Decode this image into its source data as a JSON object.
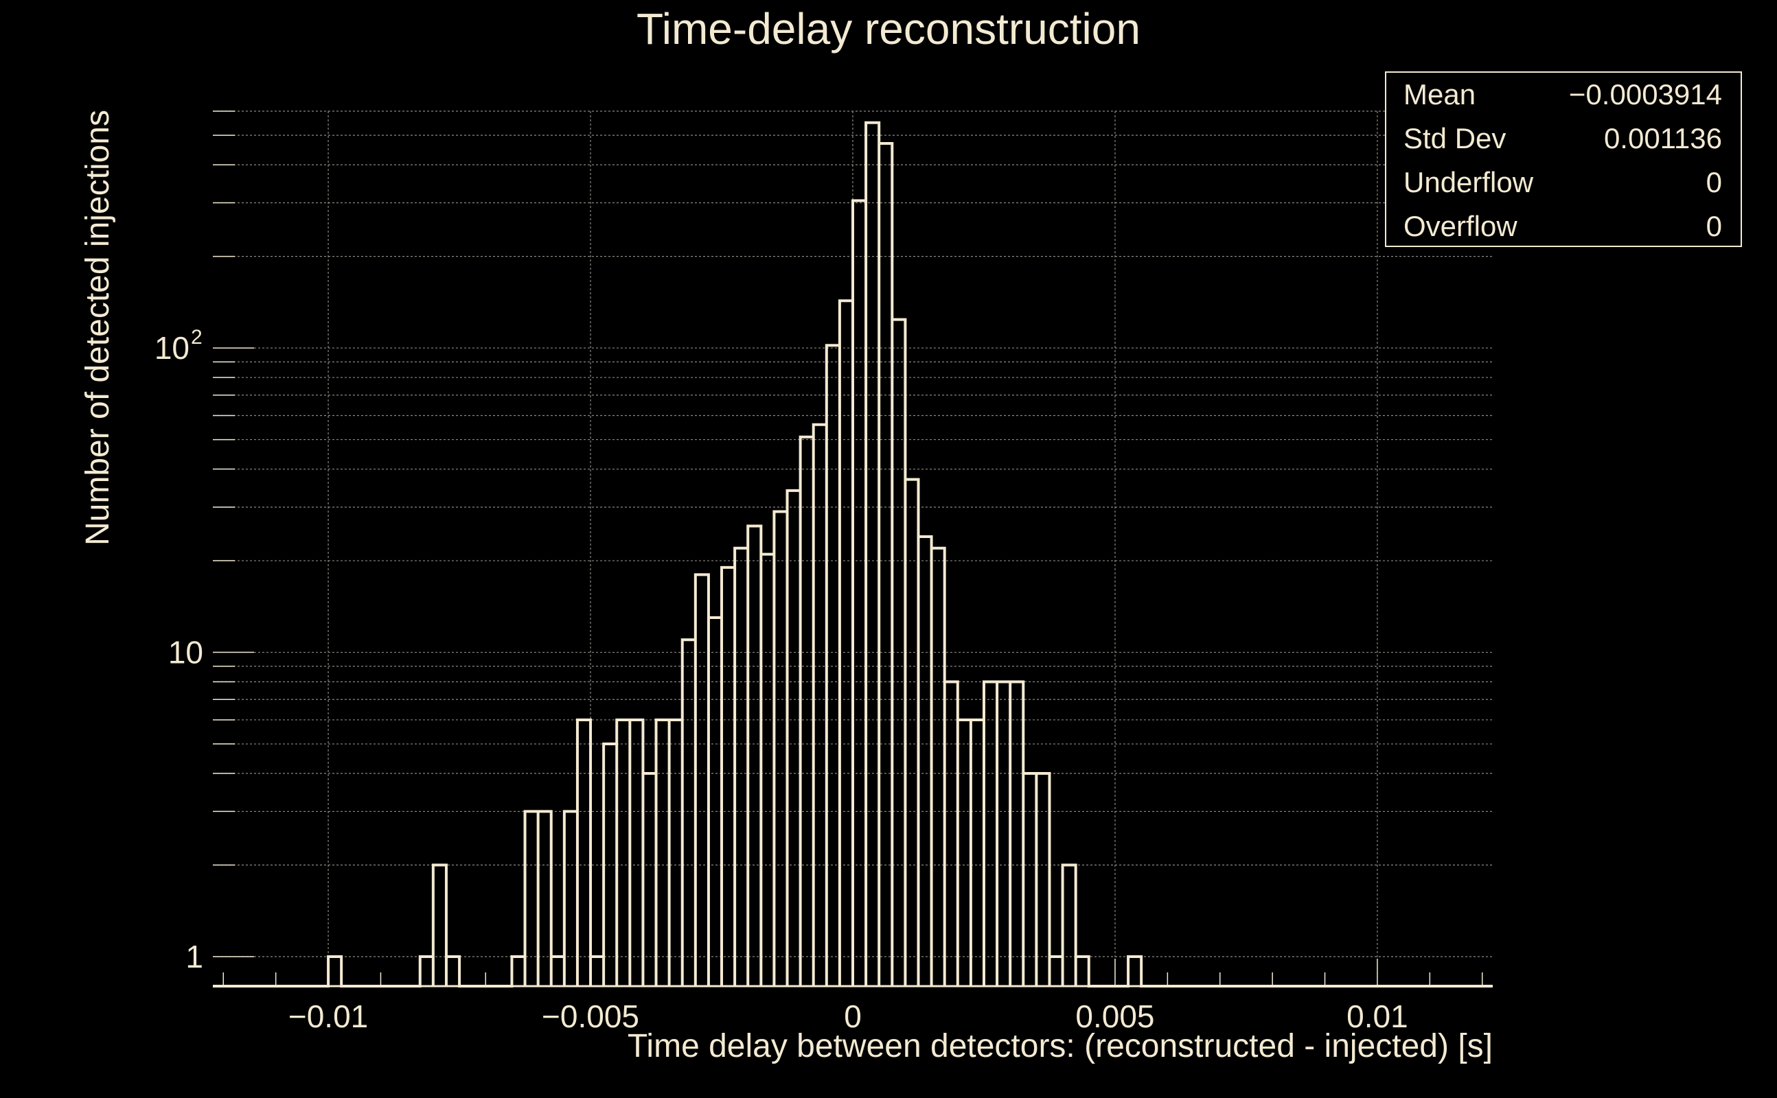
{
  "chart_data": {
    "type": "histogram",
    "title": "Time-delay reconstruction",
    "xlabel": "Time delay between detectors: (reconstructed - injected) [s]",
    "ylabel": "Number of detected injections",
    "xlim": [
      -0.0122,
      0.0122
    ],
    "ylim": [
      0.8,
      600
    ],
    "yscale": "log",
    "grid": true,
    "bin_width": 0.00025,
    "x_ticks": [
      {
        "value": -0.01,
        "label": "−0.01"
      },
      {
        "value": -0.005,
        "label": "−0.005"
      },
      {
        "value": 0,
        "label": "0"
      },
      {
        "value": 0.005,
        "label": "0.005"
      },
      {
        "value": 0.01,
        "label": "0.01"
      }
    ],
    "y_ticks": [
      {
        "value": 1,
        "label": "1"
      },
      {
        "value": 10,
        "label": "10"
      },
      {
        "value": 100,
        "label": "10",
        "sup": "2"
      }
    ],
    "bins": [
      {
        "x": -0.01,
        "y": 1
      },
      {
        "x": -0.00825,
        "y": 1
      },
      {
        "x": -0.008,
        "y": 2
      },
      {
        "x": -0.00775,
        "y": 1
      },
      {
        "x": -0.0065,
        "y": 1
      },
      {
        "x": -0.00625,
        "y": 3
      },
      {
        "x": -0.006,
        "y": 3
      },
      {
        "x": -0.00575,
        "y": 1
      },
      {
        "x": -0.0055,
        "y": 3
      },
      {
        "x": -0.00525,
        "y": 6
      },
      {
        "x": -0.005,
        "y": 1
      },
      {
        "x": -0.00475,
        "y": 5
      },
      {
        "x": -0.0045,
        "y": 6
      },
      {
        "x": -0.00425,
        "y": 6
      },
      {
        "x": -0.004,
        "y": 4
      },
      {
        "x": -0.00375,
        "y": 6
      },
      {
        "x": -0.0035,
        "y": 6
      },
      {
        "x": -0.00325,
        "y": 11
      },
      {
        "x": -0.003,
        "y": 18
      },
      {
        "x": -0.00275,
        "y": 13
      },
      {
        "x": -0.0025,
        "y": 19
      },
      {
        "x": -0.00225,
        "y": 22
      },
      {
        "x": -0.002,
        "y": 26
      },
      {
        "x": -0.00175,
        "y": 21
      },
      {
        "x": -0.0015,
        "y": 29
      },
      {
        "x": -0.00125,
        "y": 34
      },
      {
        "x": -0.001,
        "y": 51
      },
      {
        "x": -0.00075,
        "y": 56
      },
      {
        "x": -0.0005,
        "y": 102
      },
      {
        "x": -0.00025,
        "y": 143
      },
      {
        "x": 0,
        "y": 305
      },
      {
        "x": 0.00025,
        "y": 550
      },
      {
        "x": 0.0005,
        "y": 470
      },
      {
        "x": 0.00075,
        "y": 124
      },
      {
        "x": 0.001,
        "y": 37
      },
      {
        "x": 0.00125,
        "y": 24
      },
      {
        "x": 0.0015,
        "y": 22
      },
      {
        "x": 0.00175,
        "y": 8
      },
      {
        "x": 0.002,
        "y": 6
      },
      {
        "x": 0.00225,
        "y": 6
      },
      {
        "x": 0.0025,
        "y": 8
      },
      {
        "x": 0.00275,
        "y": 8
      },
      {
        "x": 0.003,
        "y": 8
      },
      {
        "x": 0.00325,
        "y": 4
      },
      {
        "x": 0.0035,
        "y": 4
      },
      {
        "x": 0.00375,
        "y": 1
      },
      {
        "x": 0.004,
        "y": 2
      },
      {
        "x": 0.00425,
        "y": 1
      },
      {
        "x": 0.00525,
        "y": 1
      }
    ],
    "stats": [
      {
        "label": "Mean",
        "value": "−0.0003914"
      },
      {
        "label": "Std Dev",
        "value": "0.001136"
      },
      {
        "label": "Underflow",
        "value": "0"
      },
      {
        "label": "Overflow",
        "value": "0"
      }
    ],
    "colors": {
      "background": "#000000",
      "line": "#f3ead2",
      "grid": "#8c8a82",
      "text": "#f3ead2"
    }
  }
}
